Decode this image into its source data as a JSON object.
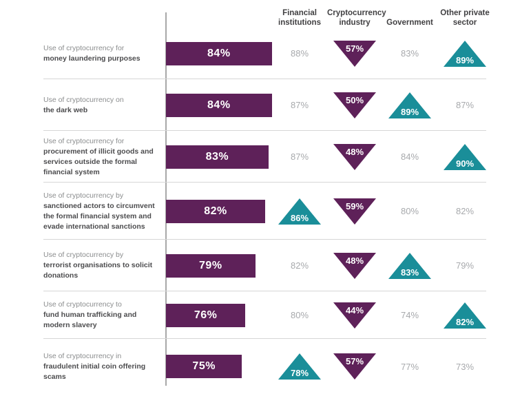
{
  "colors": {
    "purple": "#5e2159",
    "teal": "#1a8e99",
    "bar_text": "#ffffff",
    "plain_value_text": "#a7a9ac",
    "label_intro_text": "#8b8d8e",
    "label_bold_text": "#4c4c4e",
    "header_text": "#414042",
    "separator": "#d6d6d6",
    "axis_line": "#a8a8a8"
  },
  "chart_data": {
    "type": "bar",
    "orientation": "horizontal",
    "legend_position": "none",
    "grid": "row-separators",
    "columns": [
      "Financial institutions",
      "Cryptocurrency industry",
      "Government",
      "Other private sector"
    ],
    "marker_styles": {
      "up-teal": "upward triangle, teal fill, white value text",
      "down-purple": "downward triangle, purple fill, white value text",
      "none": "plain gray value text"
    },
    "rows": [
      {
        "label_intro": "Use of cryptocurrency for",
        "label_bold": "money laundering purposes",
        "overall": 84,
        "overall_display": "84%",
        "cells": [
          {
            "value": 88,
            "display": "88%",
            "marker": "none"
          },
          {
            "value": 57,
            "display": "57%",
            "marker": "down-purple"
          },
          {
            "value": 83,
            "display": "83%",
            "marker": "none"
          },
          {
            "value": 89,
            "display": "89%",
            "marker": "up-teal"
          }
        ]
      },
      {
        "label_intro": "Use of cryptocurrency on",
        "label_bold": "the dark web",
        "overall": 84,
        "overall_display": "84%",
        "cells": [
          {
            "value": 87,
            "display": "87%",
            "marker": "none"
          },
          {
            "value": 50,
            "display": "50%",
            "marker": "down-purple"
          },
          {
            "value": 89,
            "display": "89%",
            "marker": "up-teal"
          },
          {
            "value": 87,
            "display": "87%",
            "marker": "none"
          }
        ]
      },
      {
        "label_intro": "Use of cryptocurrency for",
        "label_bold": "procurement of illicit goods and services outside the formal financial system",
        "overall": 83,
        "overall_display": "83%",
        "cells": [
          {
            "value": 87,
            "display": "87%",
            "marker": "none"
          },
          {
            "value": 48,
            "display": "48%",
            "marker": "down-purple"
          },
          {
            "value": 84,
            "display": "84%",
            "marker": "none"
          },
          {
            "value": 90,
            "display": "90%",
            "marker": "up-teal"
          }
        ]
      },
      {
        "label_intro": "Use of cryptocurrency by",
        "label_bold": "sanctioned actors to circumvent the formal financial system and evade international sanctions",
        "overall": 82,
        "overall_display": "82%",
        "cells": [
          {
            "value": 86,
            "display": "86%",
            "marker": "up-teal"
          },
          {
            "value": 59,
            "display": "59%",
            "marker": "down-purple"
          },
          {
            "value": 80,
            "display": "80%",
            "marker": "none"
          },
          {
            "value": 82,
            "display": "82%",
            "marker": "none"
          }
        ]
      },
      {
        "label_intro": "Use of cryptocurrency by",
        "label_bold": "terrorist organisations to solicit donations",
        "overall": 79,
        "overall_display": "79%",
        "cells": [
          {
            "value": 82,
            "display": "82%",
            "marker": "none"
          },
          {
            "value": 48,
            "display": "48%",
            "marker": "down-purple"
          },
          {
            "value": 83,
            "display": "83%",
            "marker": "up-teal"
          },
          {
            "value": 79,
            "display": "79%",
            "marker": "none"
          }
        ]
      },
      {
        "label_intro": "Use of cryptocurrency to",
        "label_bold": "fund human trafficking and modern slavery",
        "overall": 76,
        "overall_display": "76%",
        "cells": [
          {
            "value": 80,
            "display": "80%",
            "marker": "none"
          },
          {
            "value": 44,
            "display": "44%",
            "marker": "down-purple"
          },
          {
            "value": 74,
            "display": "74%",
            "marker": "none"
          },
          {
            "value": 82,
            "display": "82%",
            "marker": "up-teal"
          }
        ]
      },
      {
        "label_intro": "Use of cryptocurrency in",
        "label_bold": "fraudulent initial coin offering scams",
        "overall": 75,
        "overall_display": "75%",
        "cells": [
          {
            "value": 78,
            "display": "78%",
            "marker": "up-teal"
          },
          {
            "value": 57,
            "display": "57%",
            "marker": "down-purple"
          },
          {
            "value": 77,
            "display": "77%",
            "marker": "none"
          },
          {
            "value": 73,
            "display": "73%",
            "marker": "none"
          }
        ]
      }
    ]
  }
}
